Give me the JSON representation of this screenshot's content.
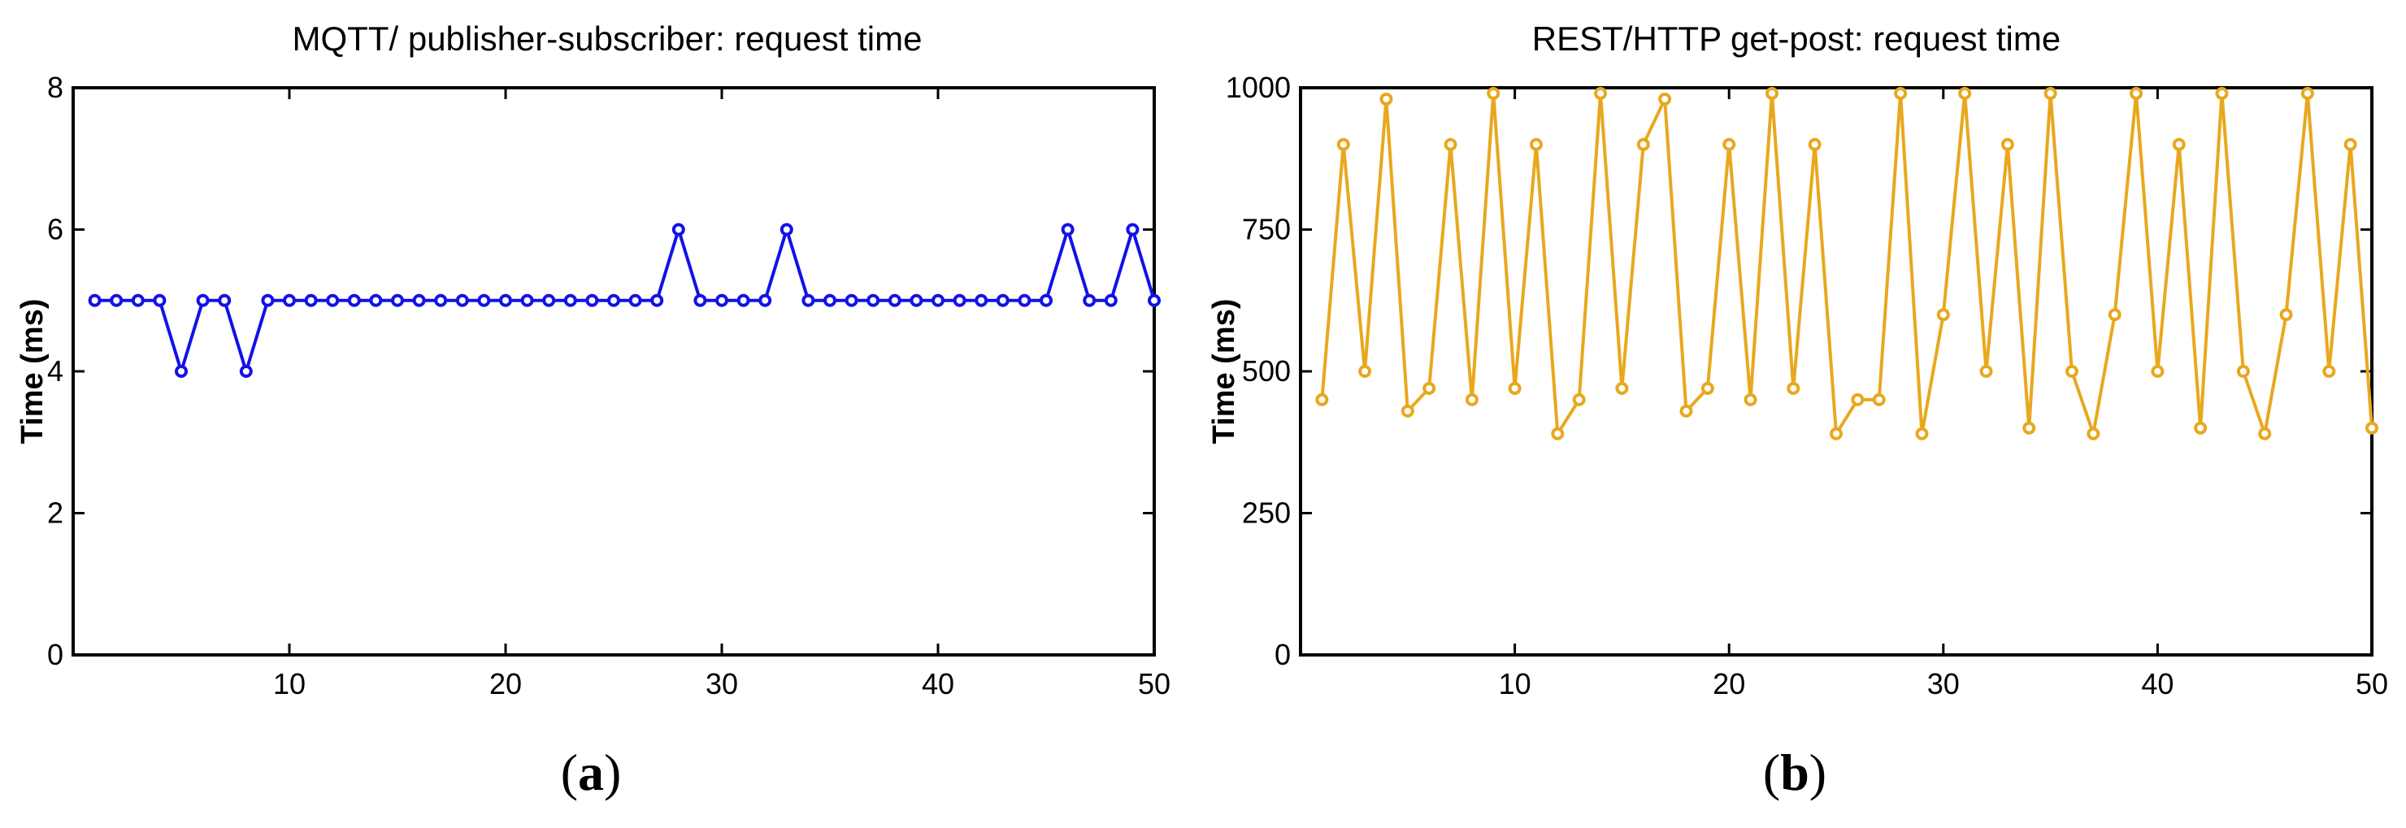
{
  "panels": [
    {
      "caption_letter": "a",
      "caption_paren_open": "(",
      "caption_paren_close": ")"
    },
    {
      "caption_letter": "b",
      "caption_paren_open": "(",
      "caption_paren_close": ")"
    }
  ],
  "chart_data": [
    {
      "type": "line",
      "title": "MQTT/ publisher-subscriber: request time",
      "ylabel": "Time (ms)",
      "xlabel": "",
      "xlim": [
        0,
        50
      ],
      "ylim": [
        0,
        8
      ],
      "xticks": [
        10,
        20,
        30,
        40,
        50
      ],
      "xtick_labels": [
        "10",
        "20",
        "30",
        "40",
        "50"
      ],
      "yticks": [
        0,
        2,
        4,
        6,
        8
      ],
      "ytick_labels": [
        "0",
        "2",
        "4",
        "6",
        "8"
      ],
      "grid": false,
      "color": "#1212e6",
      "marker": "circle",
      "series": [
        {
          "x": [
            1,
            2,
            3,
            4,
            5,
            6,
            7,
            8,
            9,
            10,
            11,
            12,
            13,
            14,
            15,
            16,
            17,
            18,
            19,
            20,
            21,
            22,
            23,
            24,
            25,
            26,
            27,
            28,
            29,
            30,
            31,
            32,
            33,
            34,
            35,
            36,
            37,
            38,
            39,
            40,
            41,
            42,
            43,
            44,
            45,
            46,
            47,
            48,
            49,
            50
          ],
          "values": [
            5,
            5,
            5,
            5,
            4,
            5,
            5,
            4,
            5,
            5,
            5,
            5,
            5,
            5,
            5,
            5,
            5,
            5,
            5,
            5,
            5,
            5,
            5,
            5,
            5,
            5,
            5,
            6,
            5,
            5,
            5,
            5,
            6,
            5,
            5,
            5,
            5,
            5,
            5,
            5,
            5,
            5,
            5,
            5,
            5,
            6,
            5,
            5,
            6,
            5
          ]
        }
      ]
    },
    {
      "type": "line",
      "title": "REST/HTTP get-post: request time",
      "ylabel": "Time (ms)",
      "xlabel": "",
      "xlim": [
        0,
        50
      ],
      "ylim": [
        0,
        1000
      ],
      "xticks": [
        10,
        20,
        30,
        40,
        50
      ],
      "xtick_labels": [
        "10",
        "20",
        "30",
        "40",
        "50"
      ],
      "yticks": [
        0,
        250,
        500,
        750,
        1000
      ],
      "ytick_labels": [
        "0",
        "250",
        "500",
        "750",
        "1000"
      ],
      "grid": false,
      "color": "#e8a81e",
      "marker": "circle",
      "series": [
        {
          "x": [
            1,
            2,
            3,
            4,
            5,
            6,
            7,
            8,
            9,
            10,
            11,
            12,
            13,
            14,
            15,
            16,
            17,
            18,
            19,
            20,
            21,
            22,
            23,
            24,
            25,
            26,
            27,
            28,
            29,
            30,
            31,
            32,
            33,
            34,
            35,
            36,
            37,
            38,
            39,
            40,
            41,
            42,
            43,
            44,
            45,
            46,
            47,
            48,
            49,
            50
          ],
          "values": [
            450,
            900,
            500,
            980,
            430,
            470,
            900,
            450,
            990,
            470,
            900,
            390,
            450,
            990,
            470,
            900,
            980,
            430,
            470,
            900,
            450,
            990,
            470,
            900,
            390,
            450,
            450,
            990,
            390,
            600,
            990,
            500,
            900,
            400,
            990,
            500,
            390,
            600,
            990,
            500,
            900,
            400,
            990,
            500,
            390,
            600,
            990,
            500,
            900,
            400
          ]
        }
      ]
    }
  ]
}
